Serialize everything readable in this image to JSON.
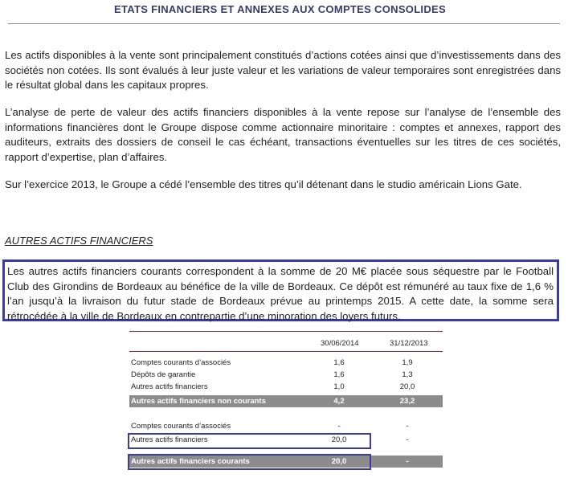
{
  "header": {
    "title": "ETATS FINANCIERS ET ANNEXES AUX COMPTES CONSOLIDES"
  },
  "paragraphs": [
    "Les actifs disponibles à la vente sont principalement constitués d’actions cotées ainsi que d’investissements dans des sociétés non cotées. Ils sont évalués à leur juste valeur et les variations de valeur temporaires sont enregistrées dans le résultat global dans les capitaux propres.",
    "L’analyse de perte de valeur des actifs financiers disponibles à la vente repose sur l’analyse de l’ensemble des informations financières dont le Groupe dispose comme actionnaire minoritaire : comptes et annexes, rapport des auditeurs, extraits des dossiers de conseil le cas échéant, transactions éventuelles sur les titres de ces sociétés, rapport d’expertise, plan d’affaires.",
    "Sur l’exercice 2013, le Groupe a cédé l’ensemble des titres qu’il détenant dans le studio américain Lions Gate."
  ],
  "section": {
    "title": "AUTRES ACTIFS FINANCIERS",
    "highlighted_paragraph": "Les autres actifs financiers courants correspondent à la somme de 20 M€ placée sous séquestre par le Football Club des Girondins de Bordeaux au bénéfice de la ville de Bordeaux. Ce dépôt est rémunéré au taux fixe de 1,6 % l’an jusqu’à la livraison du futur stade de Bordeaux prévue au printemps 2015. A cette date, la somme sera rétrocédée à la ville de Bordeaux en contrepartie d’une minoration des loyers futurs."
  },
  "table": {
    "col1": "30/06/2014",
    "col2": "31/12/2013",
    "rows": [
      {
        "label": "Comptes courants d’associés",
        "v1": "1,6",
        "v2": "1,9"
      },
      {
        "label": "Dépôts de garantie",
        "v1": "1,6",
        "v2": "1,3"
      },
      {
        "label": "Autres actifs financiers",
        "v1": "1,0",
        "v2": "20,0"
      },
      {
        "label": "Autres actifs financiers non courants",
        "v1": "4,2",
        "v2": "23,2"
      },
      {
        "label": "Comptes courants d’associés",
        "v1": "-",
        "v2": "-"
      },
      {
        "label": "Autres actifs financiers",
        "v1": "20,0",
        "v2": "-"
      },
      {
        "label": "Autres actifs financiers courants",
        "v1": "20,0",
        "v2": "-"
      }
    ]
  },
  "colors": {
    "highlight_border": "#3a3aa8",
    "total_row_bg": "#8c8c8c",
    "table_rule": "#7a3030"
  }
}
